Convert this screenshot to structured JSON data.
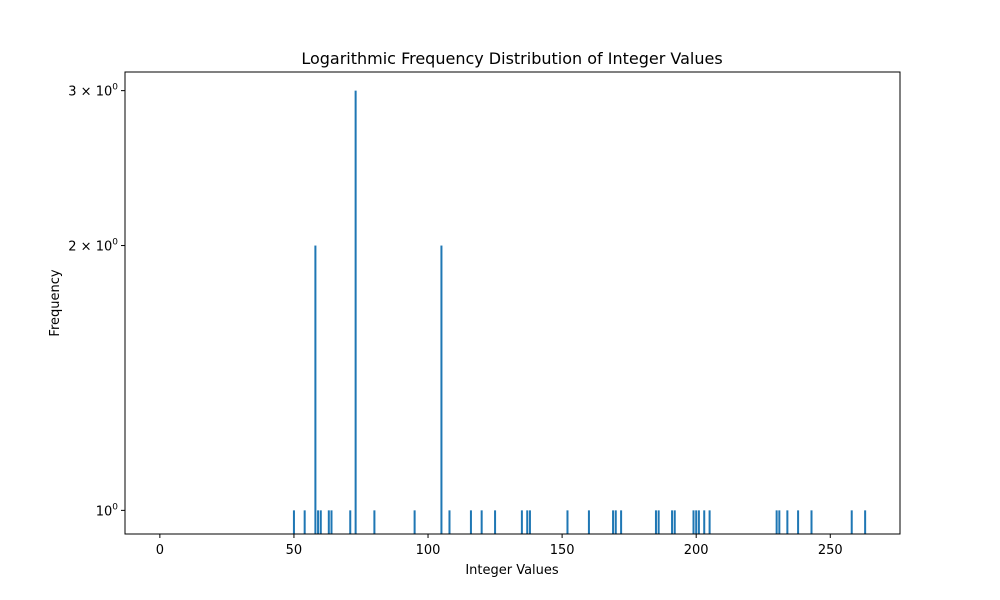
{
  "chart_data": {
    "type": "bar",
    "title": "Logarithmic Frequency Distribution of Integer Values",
    "xlabel": "Integer Values",
    "ylabel": "Frequency",
    "yscale": "log",
    "xlim": [
      -13,
      276
    ],
    "ylim": [
      0.94,
      3.15
    ],
    "grid": false,
    "color": "#1f77b4",
    "x_ticks": [
      0,
      50,
      100,
      150,
      200,
      250
    ],
    "x_tick_labels": [
      "0",
      "50",
      "100",
      "150",
      "200",
      "250"
    ],
    "y_ticks": [
      1,
      2,
      3
    ],
    "y_tick_labels": [
      {
        "base": "10",
        "exp": "0",
        "prefix": ""
      },
      {
        "base": "10",
        "exp": "0",
        "prefix": "2 × "
      },
      {
        "base": "10",
        "exp": "0",
        "prefix": "3 × "
      }
    ],
    "points": [
      {
        "x": 50,
        "y": 1
      },
      {
        "x": 54,
        "y": 1
      },
      {
        "x": 58,
        "y": 2
      },
      {
        "x": 59,
        "y": 1
      },
      {
        "x": 60,
        "y": 1
      },
      {
        "x": 63,
        "y": 1
      },
      {
        "x": 64,
        "y": 1
      },
      {
        "x": 71,
        "y": 1
      },
      {
        "x": 73,
        "y": 3
      },
      {
        "x": 80,
        "y": 1
      },
      {
        "x": 95,
        "y": 1
      },
      {
        "x": 105,
        "y": 2
      },
      {
        "x": 108,
        "y": 1
      },
      {
        "x": 116,
        "y": 1
      },
      {
        "x": 120,
        "y": 1
      },
      {
        "x": 125,
        "y": 1
      },
      {
        "x": 135,
        "y": 1
      },
      {
        "x": 137,
        "y": 1
      },
      {
        "x": 138,
        "y": 1
      },
      {
        "x": 152,
        "y": 1
      },
      {
        "x": 160,
        "y": 1
      },
      {
        "x": 169,
        "y": 1
      },
      {
        "x": 170,
        "y": 1
      },
      {
        "x": 172,
        "y": 1
      },
      {
        "x": 185,
        "y": 1
      },
      {
        "x": 186,
        "y": 1
      },
      {
        "x": 191,
        "y": 1
      },
      {
        "x": 192,
        "y": 1
      },
      {
        "x": 199,
        "y": 1
      },
      {
        "x": 200,
        "y": 1
      },
      {
        "x": 201,
        "y": 1
      },
      {
        "x": 203,
        "y": 1
      },
      {
        "x": 205,
        "y": 1
      },
      {
        "x": 230,
        "y": 1
      },
      {
        "x": 231,
        "y": 1
      },
      {
        "x": 234,
        "y": 1
      },
      {
        "x": 238,
        "y": 1
      },
      {
        "x": 243,
        "y": 1
      },
      {
        "x": 258,
        "y": 1
      },
      {
        "x": 263,
        "y": 1
      }
    ]
  }
}
